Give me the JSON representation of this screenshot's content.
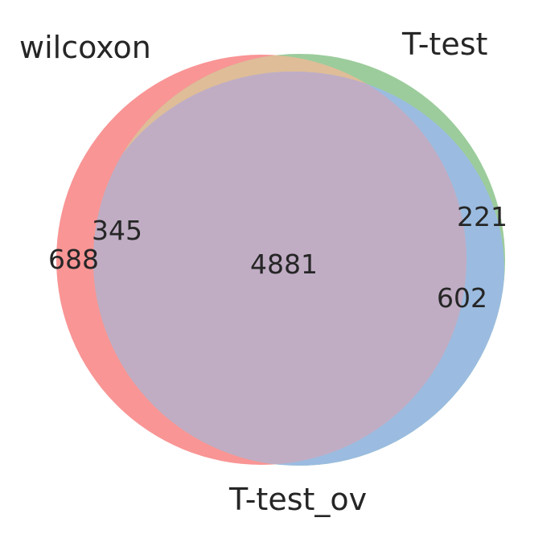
{
  "chart_data": {
    "type": "venn",
    "sets": [
      {
        "name": "wilcoxon",
        "color": "#f88888"
      },
      {
        "name": "T-test",
        "color": "#88c488"
      },
      {
        "name": "T-test_ov",
        "color": "#8bb4e0"
      }
    ],
    "regions": [
      {
        "sets": [
          "wilcoxon"
        ],
        "value": 688
      },
      {
        "sets": [
          "wilcoxon",
          "T-test"
        ],
        "value": 345
      },
      {
        "sets": [
          "T-test"
        ],
        "value": 221
      },
      {
        "sets": [
          "T-test",
          "T-test_ov"
        ],
        "value": 602
      },
      {
        "sets": [
          "wilcoxon",
          "T-test",
          "T-test_ov"
        ],
        "value": 4881
      }
    ]
  }
}
